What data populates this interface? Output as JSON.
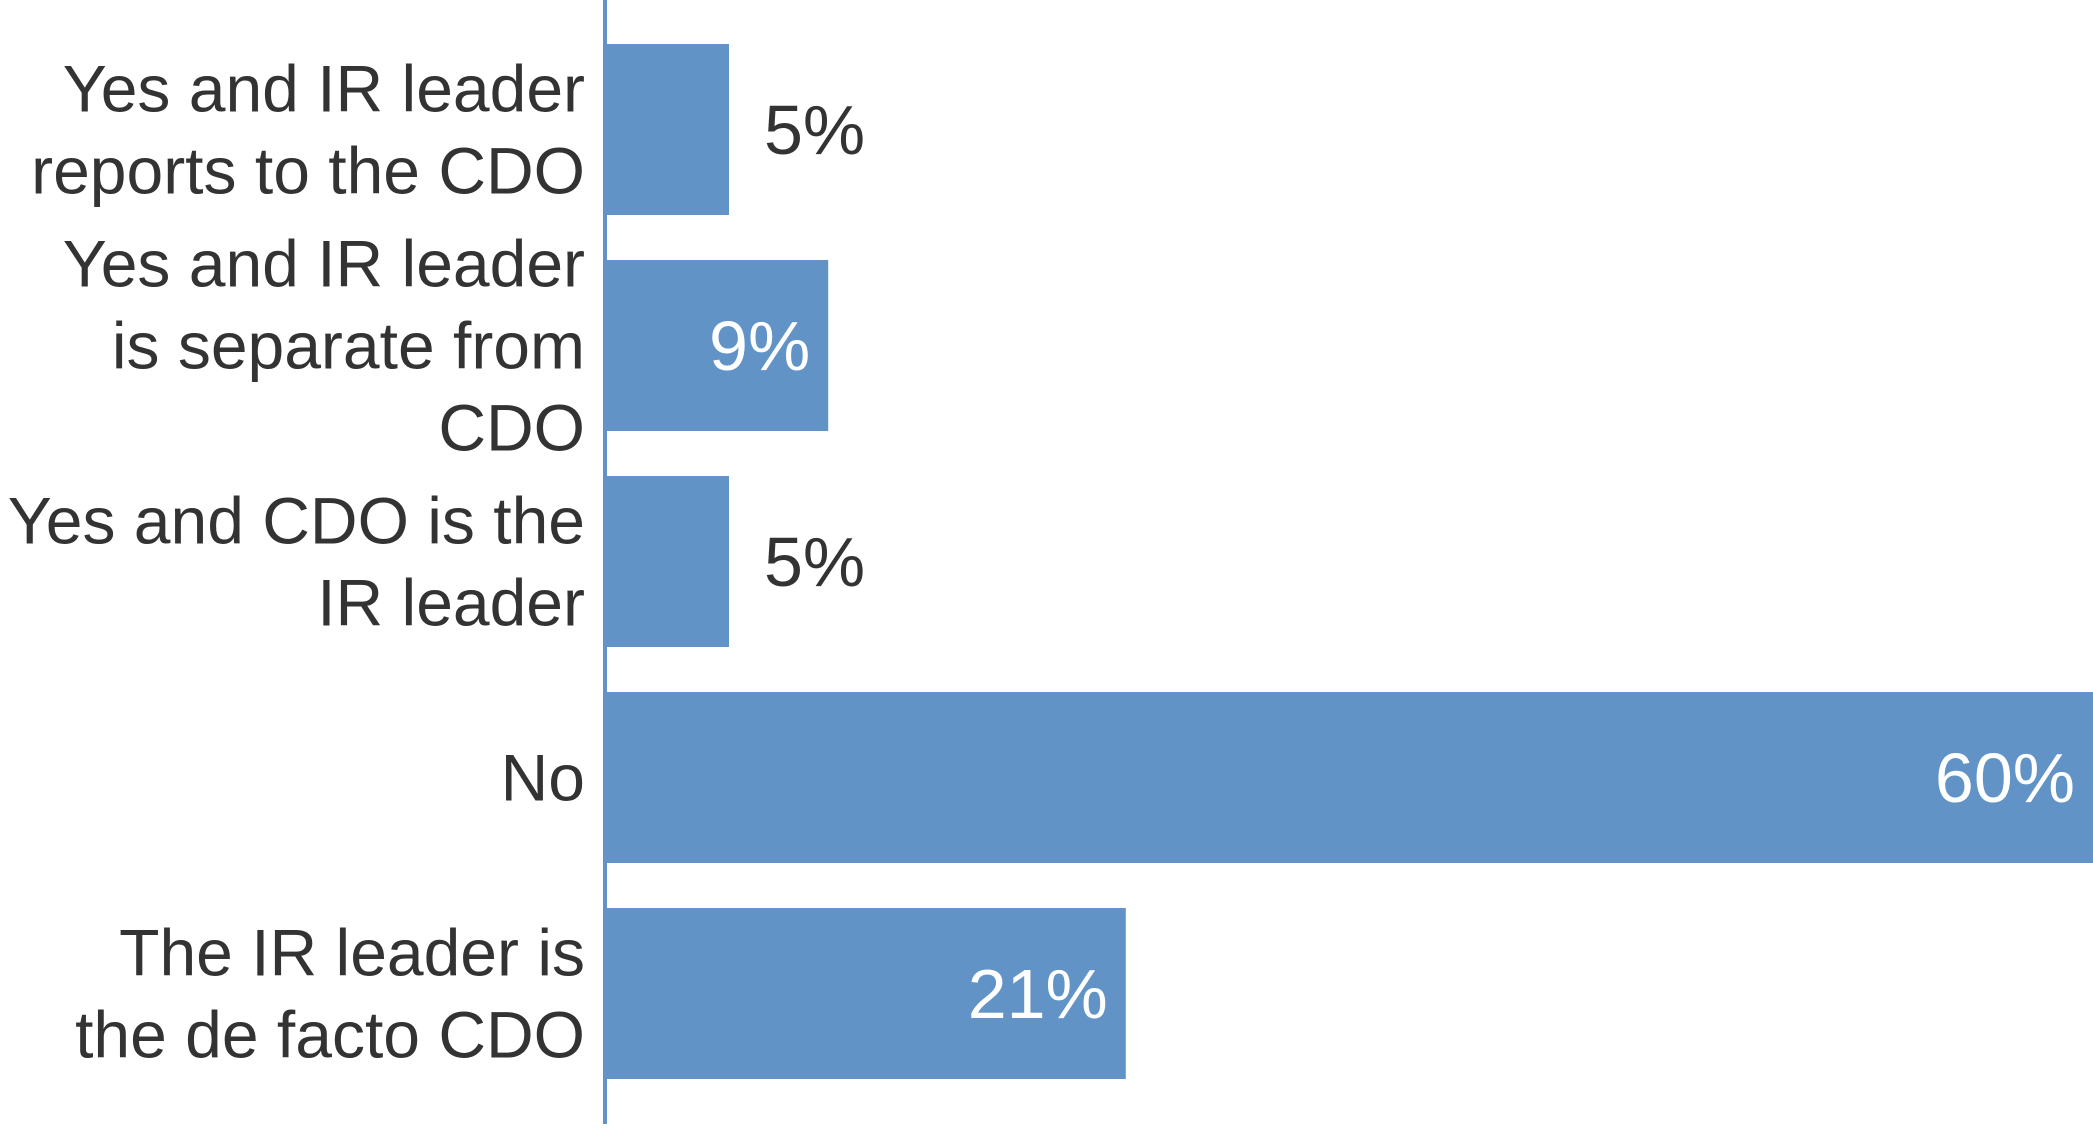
{
  "chart_data": {
    "type": "bar",
    "orientation": "horizontal",
    "categories": [
      [
        "Yes and IR leader",
        "reports to the CDO"
      ],
      [
        "Yes and IR leader",
        "is separate from",
        "CDO"
      ],
      [
        "Yes and CDO is the",
        "IR leader"
      ],
      [
        "No"
      ],
      [
        "The IR leader is",
        "the de facto CDO"
      ]
    ],
    "values": [
      5,
      9,
      5,
      60,
      21
    ],
    "value_labels": [
      "5%",
      "9%",
      "5%",
      "60%",
      "21%"
    ],
    "xlim": [
      0,
      60
    ],
    "grid": false,
    "legend": "none",
    "colors": {
      "bar": "#6193c6",
      "axis": "#6193c6",
      "category_text": "#333333",
      "label_outside": "#333333",
      "label_inside": "#ffffff"
    }
  }
}
